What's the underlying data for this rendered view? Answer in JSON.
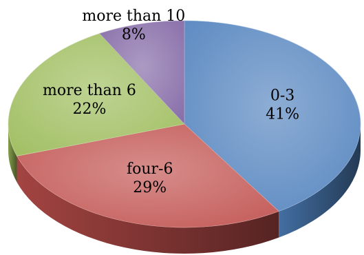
{
  "chart_data": {
    "type": "pie",
    "style": "3d",
    "title": "",
    "legend": "none",
    "slices": [
      {
        "category": "0-3",
        "value": 41,
        "value_label": "41%",
        "color": "#4f81bd"
      },
      {
        "category": "four-6",
        "value": 29,
        "value_label": "29%",
        "color": "#c0504d"
      },
      {
        "category": "more than 6",
        "value": 22,
        "value_label": "22%",
        "color": "#9bbb59"
      },
      {
        "category": "more than 10",
        "value": 8,
        "value_label": "8%",
        "color": "#8064a2"
      }
    ]
  }
}
